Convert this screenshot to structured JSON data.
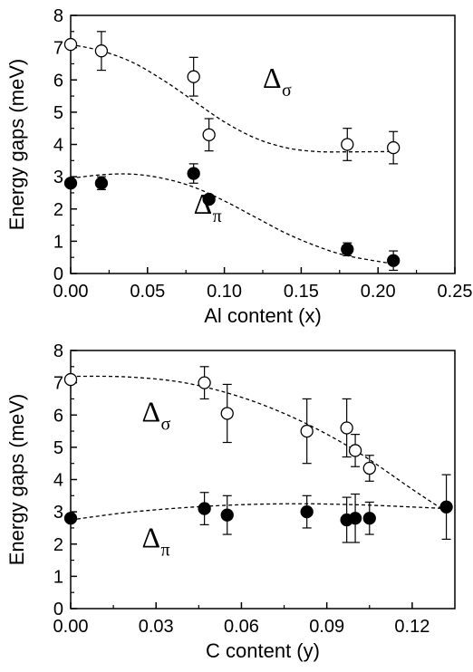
{
  "chart_data": [
    {
      "type": "scatter",
      "xlabel": "Al content (x)",
      "ylabel": "Energy gaps (meV)",
      "xlim": [
        0.0,
        0.25
      ],
      "ylim": [
        0,
        8
      ],
      "xticks": [
        "0.00",
        "0.05",
        "0.10",
        "0.15",
        "0.20",
        "0.25"
      ],
      "yticks": [
        "0",
        "1",
        "2",
        "3",
        "4",
        "5",
        "6",
        "7",
        "8"
      ],
      "grid": false,
      "annotations": [
        {
          "symbol": "Δ",
          "subscript": "σ",
          "x": 0.125,
          "y": 5.75
        },
        {
          "symbol": "Δ",
          "subscript": "π",
          "x": 0.08,
          "y": 1.85
        }
      ],
      "series": [
        {
          "marker": "open-circle",
          "points": [
            {
              "x": 0.0,
              "y": 7.1,
              "err": 0.0
            },
            {
              "x": 0.02,
              "y": 6.9,
              "err": 0.6
            },
            {
              "x": 0.08,
              "y": 6.1,
              "err": 0.6
            },
            {
              "x": 0.09,
              "y": 4.3,
              "err": 0.5
            },
            {
              "x": 0.18,
              "y": 4.0,
              "err": 0.5
            },
            {
              "x": 0.21,
              "y": 3.9,
              "err": 0.5
            }
          ],
          "fit": [
            [
              0.0,
              7.1
            ],
            [
              0.02,
              6.9
            ],
            [
              0.04,
              6.55
            ],
            [
              0.06,
              6.0
            ],
            [
              0.08,
              5.35
            ],
            [
              0.1,
              4.7
            ],
            [
              0.12,
              4.2
            ],
            [
              0.14,
              3.9
            ],
            [
              0.16,
              3.78
            ],
            [
              0.18,
              3.77
            ],
            [
              0.21,
              3.78
            ]
          ]
        },
        {
          "marker": "filled-circle",
          "points": [
            {
              "x": 0.0,
              "y": 2.8,
              "err": 0.0
            },
            {
              "x": 0.02,
              "y": 2.8,
              "err": 0.2
            },
            {
              "x": 0.08,
              "y": 3.1,
              "err": 0.3
            },
            {
              "x": 0.09,
              "y": 2.3,
              "err": 0.1
            },
            {
              "x": 0.18,
              "y": 0.75,
              "err": 0.2
            },
            {
              "x": 0.21,
              "y": 0.4,
              "err": 0.3
            }
          ],
          "fit": [
            [
              0.0,
              2.95
            ],
            [
              0.02,
              3.06
            ],
            [
              0.04,
              3.08
            ],
            [
              0.06,
              2.95
            ],
            [
              0.08,
              2.68
            ],
            [
              0.1,
              2.25
            ],
            [
              0.12,
              1.75
            ],
            [
              0.14,
              1.25
            ],
            [
              0.16,
              0.85
            ],
            [
              0.18,
              0.55
            ],
            [
              0.21,
              0.3
            ]
          ]
        }
      ]
    },
    {
      "type": "scatter",
      "xlabel": "C content (y)",
      "ylabel": "Energy gaps (meV)",
      "xlim": [
        0.0,
        0.135
      ],
      "ylim": [
        0,
        8
      ],
      "xticks": [
        "0.00",
        "0.03",
        "0.06",
        "0.09",
        "0.12"
      ],
      "yticks": [
        "0",
        "1",
        "2",
        "3",
        "4",
        "5",
        "6",
        "7",
        "8"
      ],
      "grid": false,
      "annotations": [
        {
          "symbol": "Δ",
          "subscript": "σ",
          "x": 0.025,
          "y": 5.8
        },
        {
          "symbol": "Δ",
          "subscript": "π",
          "x": 0.025,
          "y": 1.9
        }
      ],
      "series": [
        {
          "marker": "open-circle",
          "points": [
            {
              "x": 0.0,
              "y": 7.1,
              "err": 0.0
            },
            {
              "x": 0.047,
              "y": 7.0,
              "err": 0.5
            },
            {
              "x": 0.055,
              "y": 6.05,
              "err": 0.9
            },
            {
              "x": 0.083,
              "y": 5.5,
              "err": 1.0
            },
            {
              "x": 0.097,
              "y": 5.6,
              "err": 0.9
            },
            {
              "x": 0.1,
              "y": 4.9,
              "err": 0.5
            },
            {
              "x": 0.105,
              "y": 4.35,
              "err": 0.4
            }
          ],
          "fit": [
            [
              0.0,
              7.2
            ],
            [
              0.02,
              7.18
            ],
            [
              0.04,
              7.0
            ],
            [
              0.06,
              6.55
            ],
            [
              0.08,
              5.85
            ],
            [
              0.1,
              4.9
            ],
            [
              0.12,
              3.7
            ],
            [
              0.132,
              3.0
            ]
          ]
        },
        {
          "marker": "filled-circle",
          "points": [
            {
              "x": 0.0,
              "y": 2.8,
              "err": 0.0
            },
            {
              "x": 0.047,
              "y": 3.1,
              "err": 0.5
            },
            {
              "x": 0.055,
              "y": 2.9,
              "err": 0.6
            },
            {
              "x": 0.083,
              "y": 3.0,
              "err": 0.5
            },
            {
              "x": 0.097,
              "y": 2.75,
              "err": 0.7
            },
            {
              "x": 0.1,
              "y": 2.8,
              "err": 0.75
            },
            {
              "x": 0.105,
              "y": 2.8,
              "err": 0.5
            },
            {
              "x": 0.132,
              "y": 3.15,
              "err": 1.0
            }
          ],
          "fit": [
            [
              0.0,
              2.75
            ],
            [
              0.02,
              2.98
            ],
            [
              0.04,
              3.13
            ],
            [
              0.06,
              3.22
            ],
            [
              0.08,
              3.25
            ],
            [
              0.1,
              3.22
            ],
            [
              0.12,
              3.15
            ],
            [
              0.132,
              3.1
            ]
          ]
        }
      ]
    }
  ]
}
